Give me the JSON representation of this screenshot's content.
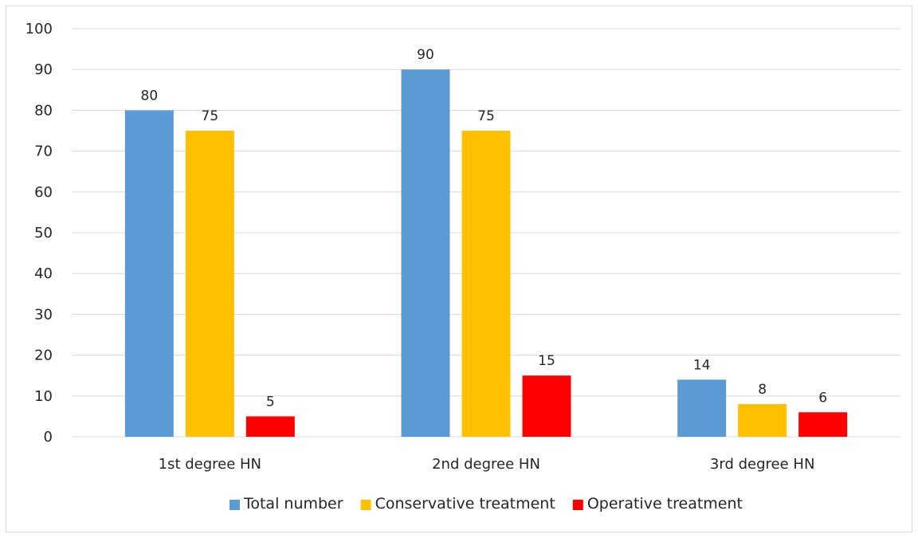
{
  "chart_data": {
    "type": "bar",
    "title": "",
    "xlabel": "",
    "ylabel": "",
    "categories": [
      "1st degree HN",
      "2nd degree HN",
      "3rd degree HN"
    ],
    "series": [
      {
        "name": "Total number",
        "values": [
          80,
          90,
          14
        ],
        "color": "#5b9bd5"
      },
      {
        "name": "Conservative treatment",
        "values": [
          75,
          75,
          8
        ],
        "color": "#ffc000"
      },
      {
        "name": "Operative treatment",
        "values": [
          5,
          15,
          6
        ],
        "color": "#ff0000"
      }
    ],
    "ylim": [
      0,
      100
    ],
    "yticks": [
      0,
      10,
      20,
      30,
      40,
      50,
      60,
      70,
      80,
      90,
      100
    ],
    "grid": true,
    "legend_position": "bottom",
    "data_labels": true
  }
}
